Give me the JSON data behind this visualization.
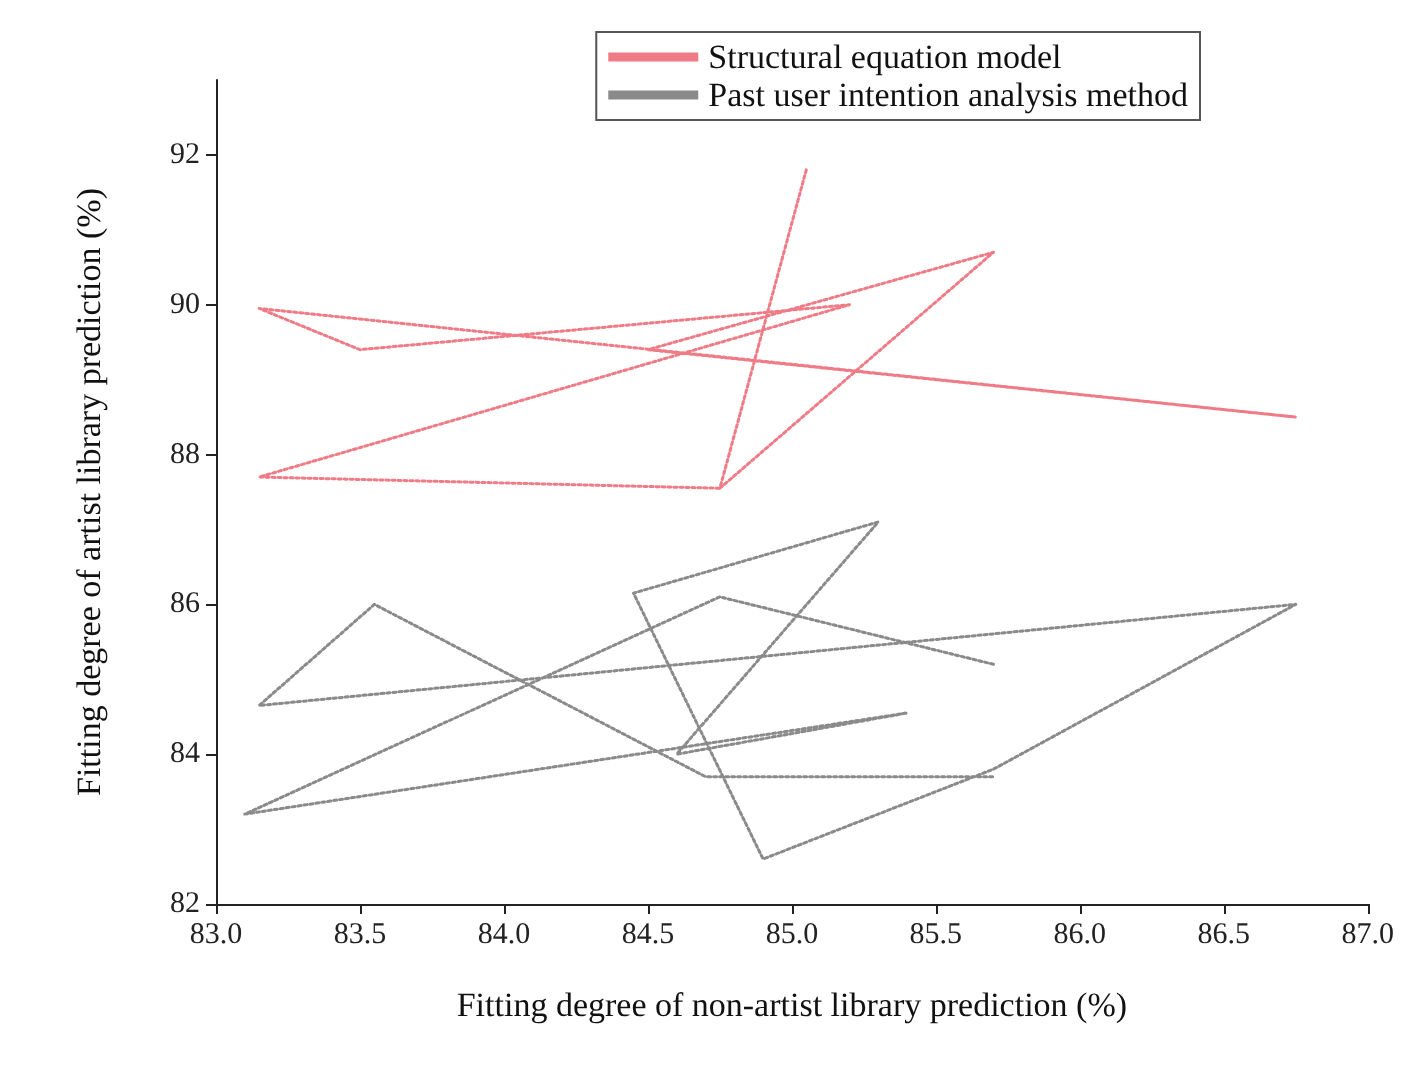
{
  "chart_data": {
    "type": "line",
    "xlabel": "Fitting degree of non-artist library prediction (%)",
    "ylabel": "Fitting degree of artist library prediction (%)",
    "xlim": [
      83,
      87
    ],
    "xticks": [
      {
        "value": 83,
        "label": "83.0"
      },
      {
        "value": 83.5,
        "label": "83.5"
      },
      {
        "value": 84,
        "label": "84.0"
      },
      {
        "value": 84.5,
        "label": "84.5"
      },
      {
        "value": 85,
        "label": "85.0"
      },
      {
        "value": 85.5,
        "label": "85.5"
      },
      {
        "value": 86,
        "label": "86.0"
      },
      {
        "value": 86.5,
        "label": "86.5"
      },
      {
        "value": 87,
        "label": "87.0"
      }
    ],
    "ylim": [
      82,
      93
    ],
    "yticks": [
      82,
      84,
      86,
      88,
      90,
      92
    ],
    "grid": false,
    "legend": "top right",
    "marker": "none",
    "line_style": "dotted",
    "series": [
      {
        "name": "Structural equation model",
        "color": "#ee7b86",
        "x": [
          85.05,
          84.75,
          85.7,
          84.5,
          86.75,
          83.15,
          83.5,
          85.2,
          83.15,
          84.75
        ],
        "values": [
          91.8,
          87.55,
          90.7,
          89.4,
          88.5,
          89.95,
          89.4,
          90.0,
          87.7,
          87.55
        ]
      },
      {
        "name": "Past user intention analysis method",
        "color": "#8a8a8a",
        "x": [
          85.7,
          84.75,
          83.1,
          85.4,
          84.6,
          85.3,
          84.45,
          84.9,
          85.7,
          86.75,
          83.15,
          83.55,
          84.7,
          85.7
        ],
        "values": [
          85.2,
          86.1,
          83.2,
          84.55,
          84.0,
          87.1,
          86.15,
          82.6,
          83.8,
          86.0,
          84.65,
          86.0,
          83.7,
          83.7
        ]
      }
    ]
  }
}
